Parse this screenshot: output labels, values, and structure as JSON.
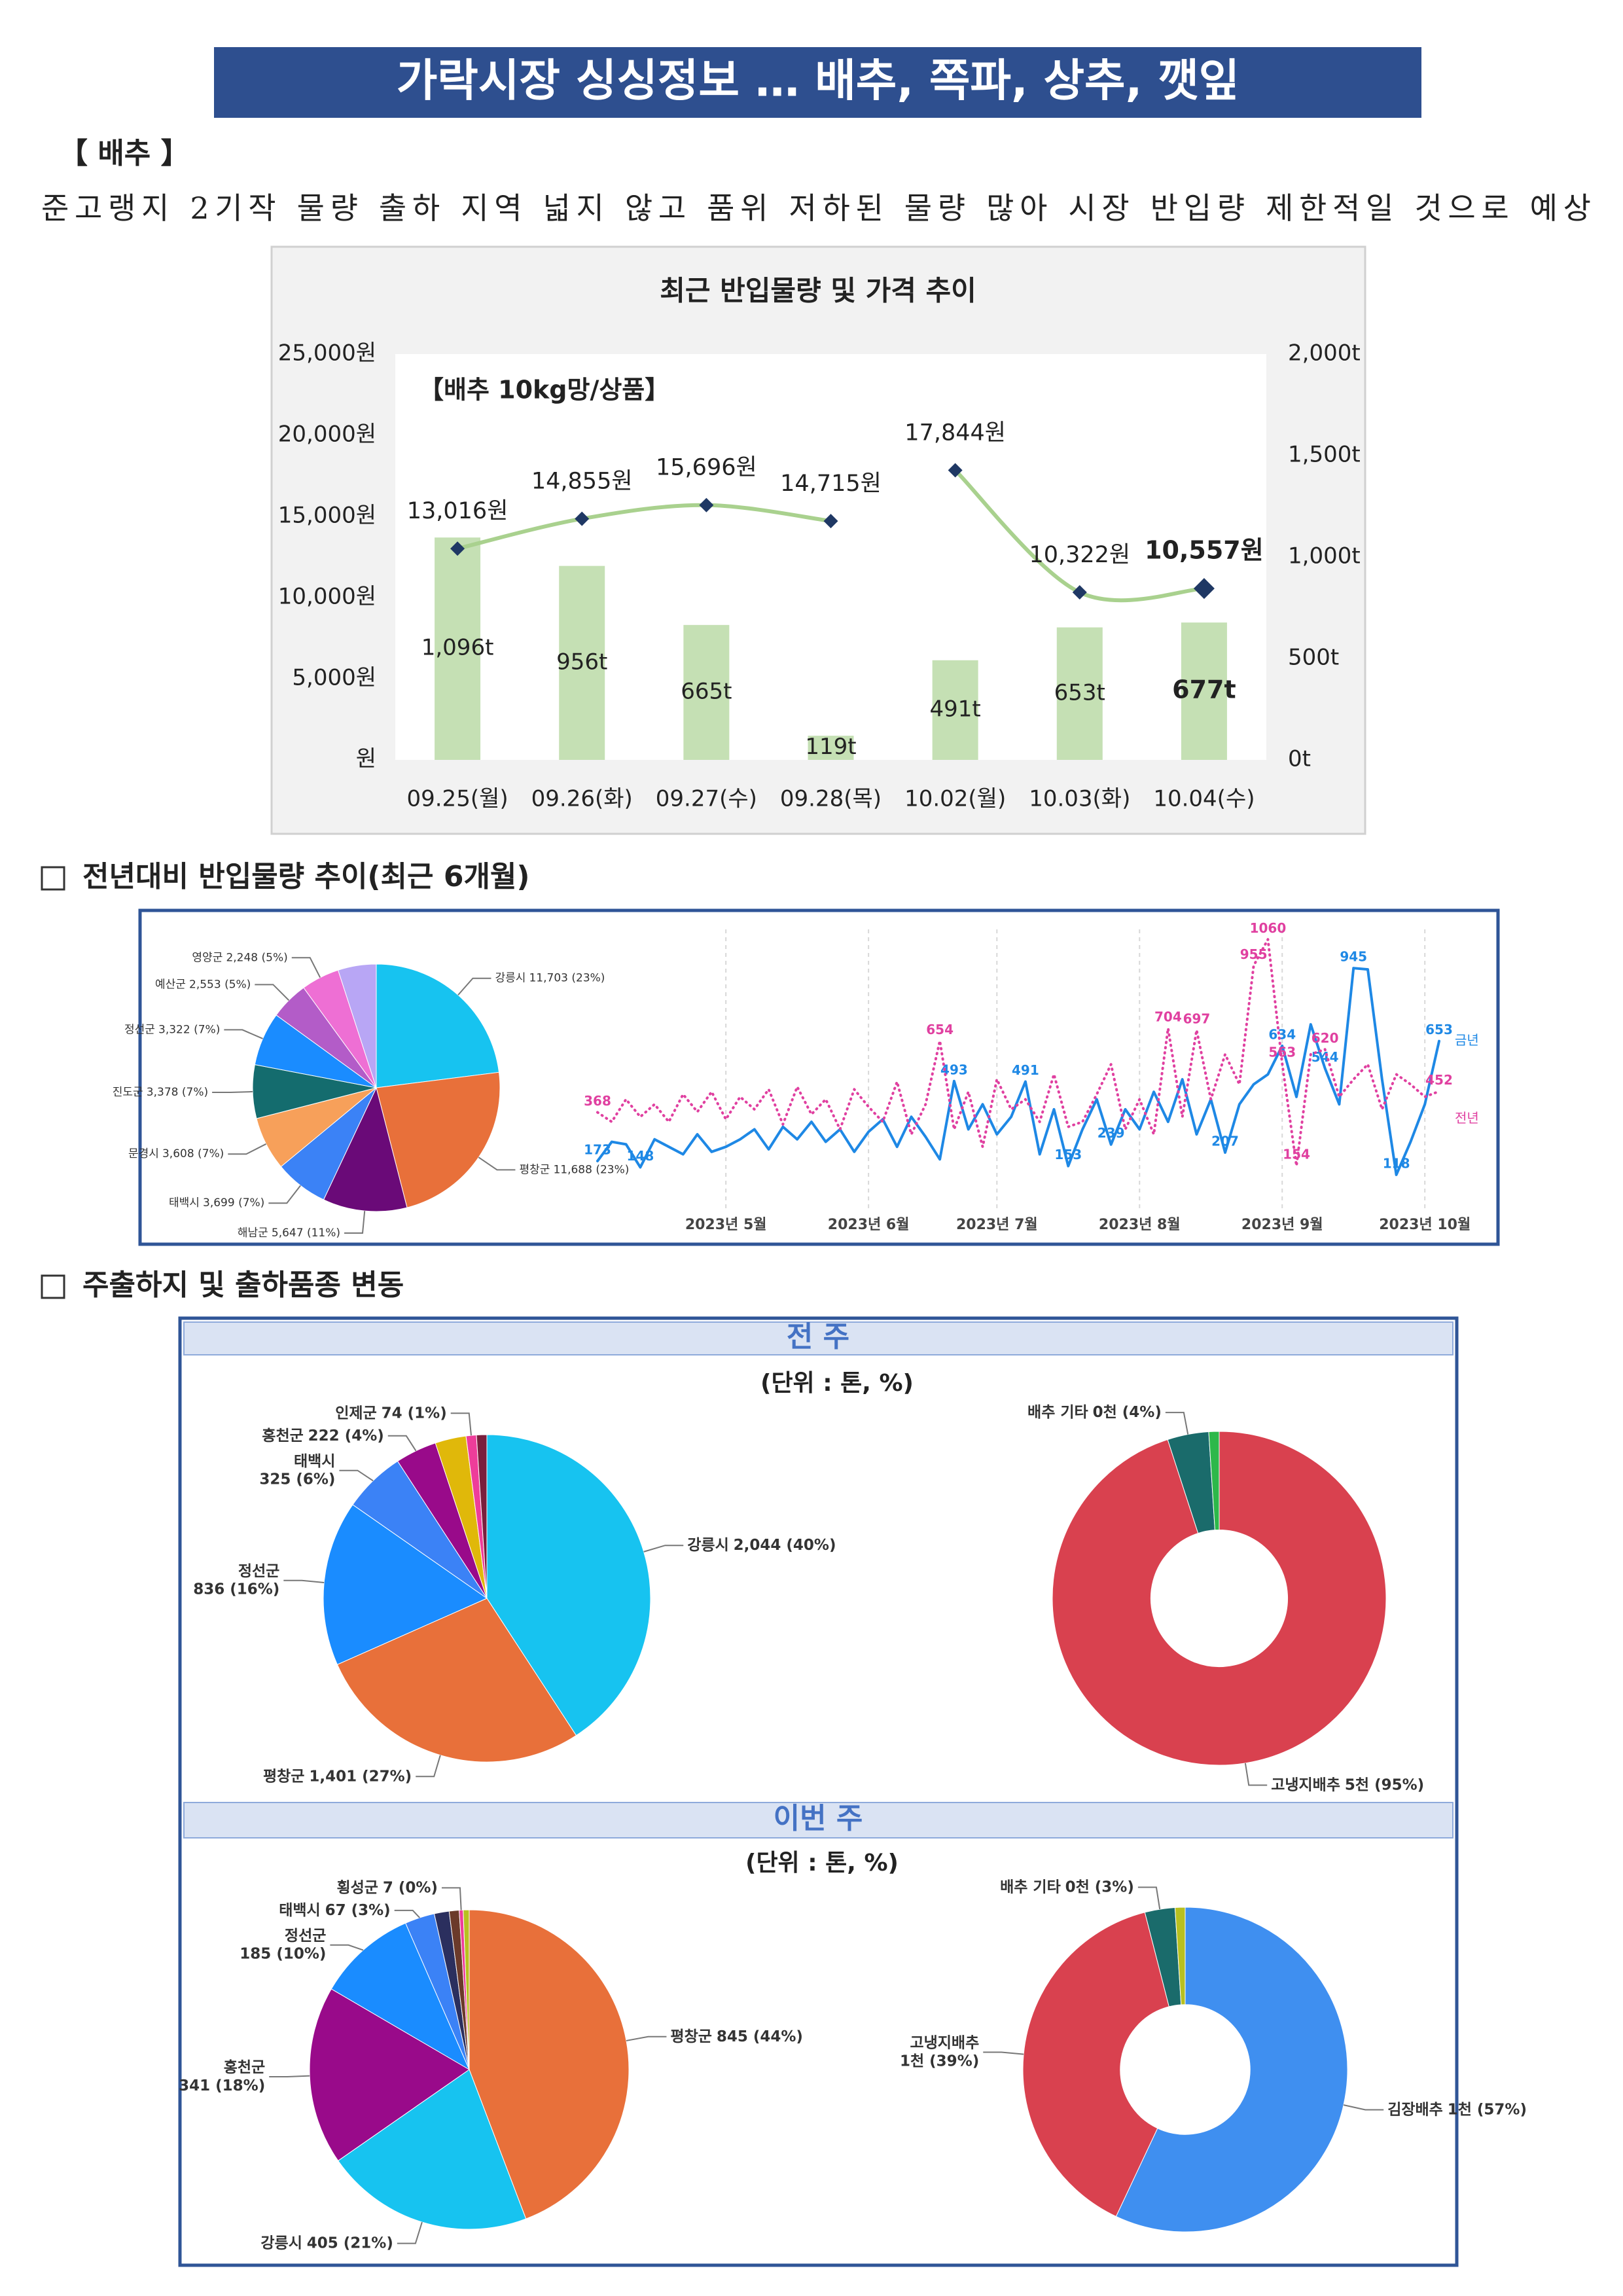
{
  "header": {
    "title": "가락시장 싱싱정보 … 배추, 쪽파, 상추, 깻잎"
  },
  "item": "【 배추 】",
  "summary": "준고랭지 2기작 물량 출하 지역 넓지 않고 품위 저하된 물량 많아 시장 반입량 제한적일 것으로 예상",
  "sections": [
    "전년대비 반입물량 추이(최근 6개월)",
    "주출하지 및 출하품종 변동"
  ],
  "panels": [
    {
      "label": "전 주",
      "unit": "(단위 : 톤, %)"
    },
    {
      "label": "이번 주",
      "unit": "(단위 : 톤, %)"
    }
  ],
  "chart_data": [
    {
      "type": "combo",
      "title": "최근 반입물량 및 가격 추이",
      "annotation": "【배추 10kg망/상품】",
      "categories": [
        "09.25(월)",
        "09.26(화)",
        "09.27(수)",
        "09.28(목)",
        "10.02(월)",
        "10.03(화)",
        "10.04(수)"
      ],
      "series": [
        {
          "type": "line",
          "color": "#a9d18e",
          "marker_color": "#1f3864",
          "values": [
            13016,
            14855,
            15696,
            14715,
            17844,
            10322,
            10557
          ],
          "value_labels": [
            "13,016원",
            "14,855원",
            "15,696원",
            "14,715원",
            "17,844원",
            "10,322원",
            "10,557원"
          ],
          "break_after": [
            3
          ]
        },
        {
          "type": "bar",
          "axis": "y2",
          "color": "#c5e0b4",
          "values": [
            1096,
            956,
            665,
            119,
            491,
            653,
            677
          ],
          "value_labels": [
            "1,096t",
            "956t",
            "665t",
            "119t",
            "491t",
            "653t",
            "677t"
          ]
        }
      ],
      "ylim": [
        0,
        25000
      ],
      "yticks": [
        {
          "value": 0,
          "label": "원"
        },
        {
          "value": 5000,
          "label": "5,000원"
        },
        {
          "value": 10000,
          "label": "10,000원"
        },
        {
          "value": 15000,
          "label": "15,000원"
        },
        {
          "value": 20000,
          "label": "20,000원"
        },
        {
          "value": 25000,
          "label": "25,000원"
        }
      ],
      "y2lim": [
        0,
        2000
      ],
      "y2ticks": [
        {
          "value": 0,
          "label": "0t"
        },
        {
          "value": 500,
          "label": "500t"
        },
        {
          "value": 1000,
          "label": "1,000t"
        },
        {
          "value": 1500,
          "label": "1,500t"
        },
        {
          "value": 2000,
          "label": "2,000t"
        }
      ],
      "grid": false
    },
    {
      "type": "pie",
      "categories": [
        "강릉시",
        "평창군",
        "해남군",
        "태백시",
        "문경시",
        "진도군",
        "정선군",
        "예산군",
        "영양군",
        null
      ],
      "values": [
        23,
        23,
        11,
        7,
        7,
        7,
        7,
        5,
        5,
        5
      ],
      "value_labels": [
        "11,703 (23%)",
        "11,688 (23%)",
        "5,647 (11%)",
        "3,699 (7%)",
        "3,608 (7%)",
        "3,378 (7%)",
        "3,322 (7%)",
        "2,553 (5%)",
        "2,248 (5%)",
        null
      ],
      "colors": [
        "#17c3f0",
        "#e8703a",
        "#6a0a78",
        "#3b82f6",
        "#f7a05a",
        "#146c6e",
        "#1a8cff",
        "#b35cc8",
        "#ee6fd4",
        "#b8a6f5"
      ]
    },
    {
      "type": "line",
      "categories": [
        null,
        null,
        null,
        null,
        null,
        null,
        null,
        null,
        null,
        "2023년 5월",
        null,
        null,
        null,
        null,
        null,
        null,
        null,
        null,
        null,
        "2023년 6월",
        null,
        null,
        null,
        null,
        null,
        null,
        null,
        null,
        "2023년 7월",
        null,
        null,
        null,
        null,
        null,
        null,
        null,
        null,
        null,
        "2023년 8월",
        null,
        null,
        null,
        null,
        null,
        null,
        null,
        null,
        null,
        "2023년 9월",
        null,
        null,
        null,
        null,
        null,
        null,
        null,
        null,
        null,
        "2023년 10월",
        null
      ],
      "series": [
        {
          "name": "금년",
          "color": "#1e88e5",
          "style": "solid",
          "values": [
            173,
            250,
            240,
            148,
            260,
            230,
            200,
            280,
            210,
            230,
            260,
            300,
            220,
            310,
            260,
            330,
            250,
            300,
            210,
            290,
            340,
            230,
            350,
            270,
            180,
            493,
            300,
            400,
            280,
            350,
            491,
            200,
            380,
            153,
            300,
            420,
            239,
            380,
            300,
            450,
            330,
            500,
            280,
            420,
            207,
            400,
            480,
            520,
            634,
            430,
            720,
            544,
            400,
            945,
            940,
            500,
            118,
            250,
            400,
            653
          ],
          "label_points": [
            0,
            3,
            25,
            30,
            33,
            36,
            44,
            48,
            51,
            53,
            56,
            59
          ]
        },
        {
          "name": "전년",
          "color": "#e040a0",
          "style": "dotted",
          "values": [
            368,
            330,
            420,
            350,
            400,
            330,
            440,
            370,
            450,
            340,
            430,
            380,
            460,
            320,
            470,
            360,
            420,
            300,
            460,
            390,
            330,
            490,
            280,
            400,
            654,
            300,
            450,
            230,
            500,
            380,
            420,
            330,
            520,
            310,
            330,
            440,
            560,
            300,
            420,
            280,
            704,
            350,
            697,
            420,
            600,
            480,
            955,
            1060,
            563,
            154,
            600,
            620,
            430,
            500,
            560,
            380,
            520,
            480,
            430,
            452
          ],
          "label_points": [
            0,
            24,
            40,
            42,
            46,
            47,
            48,
            49,
            51,
            59
          ]
        }
      ],
      "ylim": [
        0,
        1100
      ],
      "grid": "x",
      "legend": "end"
    },
    {
      "type": "pie",
      "categories": [
        "강릉시",
        "평창군",
        "정선군",
        "태백시",
        "홍천군",
        null,
        "인제군",
        null
      ],
      "values": [
        40,
        27,
        16,
        6,
        4,
        3,
        1,
        1
      ],
      "value_labels": [
        "2,044 (40%)",
        "1,401 (27%)",
        "836 (16%)",
        "325 (6%)",
        "222 (4%)",
        null,
        "74 (1%)",
        null
      ],
      "colors": [
        "#17c3f0",
        "#e8703a",
        "#1a8cff",
        "#3b82f6",
        "#990a8a",
        "#e0b80a",
        "#ee3d9a",
        "#7a1f3d"
      ]
    },
    {
      "type": "pie",
      "donut": true,
      "categories": [
        "고냉지배추",
        "배추 기타",
        null
      ],
      "values": [
        95,
        4,
        1
      ],
      "value_labels": [
        "5천 (95%)",
        "0천 (4%)",
        null
      ],
      "colors": [
        "#d9414f",
        "#1a6b6b",
        "#2db84a"
      ]
    },
    {
      "type": "pie",
      "categories": [
        "평창군",
        "강릉시",
        "홍천군",
        "정선군",
        "태백시",
        null,
        null,
        "횡성군",
        null
      ],
      "values": [
        44,
        21,
        18,
        10,
        3,
        1.5,
        1,
        0.4,
        0.6
      ],
      "value_labels": [
        "845 (44%)",
        "405 (21%)",
        "341 (18%)",
        "185 (10%)",
        "67 (3%)",
        null,
        null,
        "7 (0%)",
        null
      ],
      "colors": [
        "#e8703a",
        "#17c3f0",
        "#990a8a",
        "#1a8cff",
        "#3b82f6",
        "#2b2f5e",
        "#6b3a2a",
        "#ee3d9a",
        "#b8c020"
      ]
    },
    {
      "type": "pie",
      "donut": true,
      "categories": [
        "김장배추",
        "고냉지배추",
        "배추 기타",
        null
      ],
      "values": [
        57,
        39,
        3,
        1
      ],
      "value_labels": [
        "1천 (57%)",
        "1천 (39%)",
        "0천 (3%)",
        null
      ],
      "colors": [
        "#3f8ff0",
        "#d9414f",
        "#1a6b6b",
        "#b8c020"
      ]
    }
  ]
}
